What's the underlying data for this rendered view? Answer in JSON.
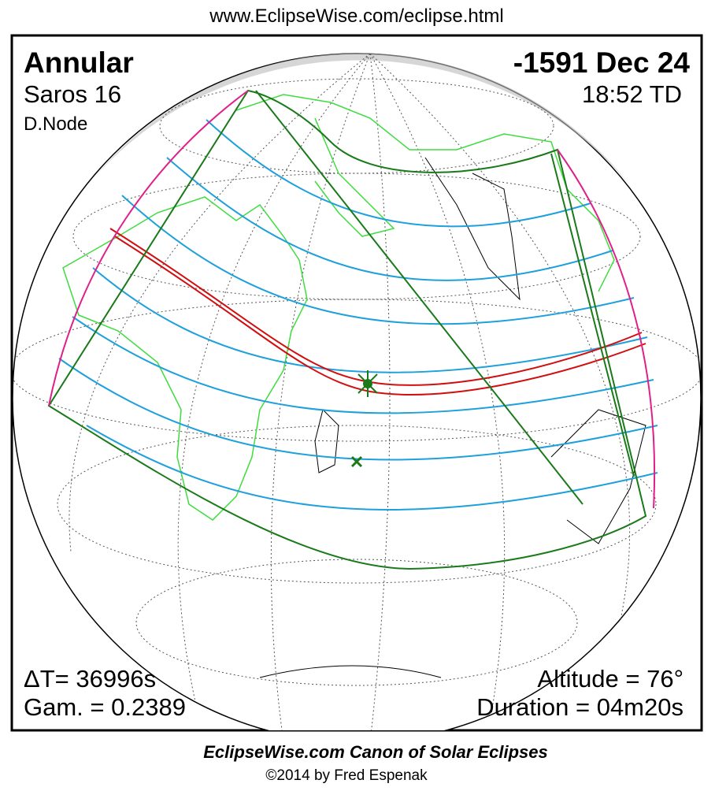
{
  "header": {
    "url": "www.EclipseWise.com/eclipse.html"
  },
  "eclipse": {
    "type": "Annular",
    "saros": "Saros  16",
    "node": "D.Node",
    "date": "-1591 Dec 24",
    "time": "18:52 TD",
    "delta_t": "ΔT=  36996s",
    "gamma": "Gam. = 0.2389",
    "altitude": "Altitude = 76°",
    "duration": "Duration = 04m20s"
  },
  "footer": {
    "title": "EclipseWise.com Canon of Solar Eclipses",
    "copyright": "©2014 by Fred Espenak"
  }
}
